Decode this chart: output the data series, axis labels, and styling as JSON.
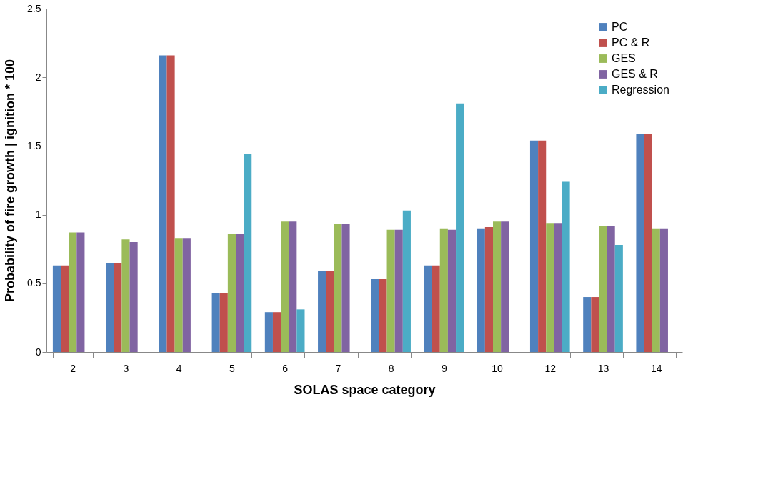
{
  "chart_data": {
    "type": "bar",
    "xlabel": "SOLAS space category",
    "ylabel": "Probability of fire growth | ignition * 100",
    "categories": [
      "2",
      "3",
      "4",
      "5",
      "6",
      "7",
      "8",
      "9",
      "10",
      "12",
      "13",
      "14"
    ],
    "series": [
      {
        "name": "PC",
        "color": "#4f81bd",
        "values": [
          0.63,
          0.65,
          2.16,
          0.43,
          0.29,
          0.59,
          0.53,
          0.63,
          0.9,
          1.54,
          0.4,
          1.59
        ]
      },
      {
        "name": "PC & R",
        "color": "#c0504d",
        "values": [
          0.63,
          0.65,
          2.16,
          0.43,
          0.29,
          0.59,
          0.53,
          0.63,
          0.91,
          1.54,
          0.4,
          1.59
        ]
      },
      {
        "name": "GES",
        "color": "#9bbb59",
        "values": [
          0.87,
          0.82,
          0.83,
          0.86,
          0.95,
          0.93,
          0.89,
          0.9,
          0.95,
          0.94,
          0.92,
          0.9
        ]
      },
      {
        "name": "GES & R",
        "color": "#8064a2",
        "values": [
          0.87,
          0.8,
          0.83,
          0.86,
          0.95,
          0.93,
          0.89,
          0.89,
          0.95,
          0.94,
          0.92,
          0.9
        ]
      },
      {
        "name": "Regression",
        "color": "#4bacc6",
        "values": [
          null,
          null,
          null,
          1.44,
          0.31,
          null,
          1.03,
          1.81,
          null,
          1.24,
          0.78,
          null
        ]
      }
    ],
    "ylim": [
      0,
      2.5
    ],
    "yticks": [
      0,
      0.5,
      1,
      1.5,
      2,
      2.5
    ],
    "grid": false,
    "legend": "top right"
  }
}
